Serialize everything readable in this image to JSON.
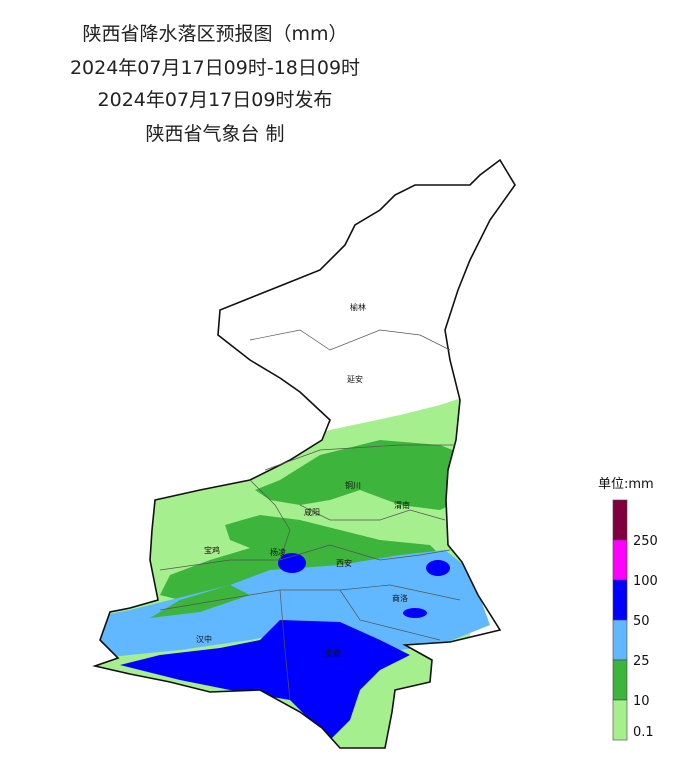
{
  "header": {
    "title": "陕西省降水落区预报图（mm）",
    "period": "2024年07月17日09时-18日09时",
    "issued": "2024年07月17日09时发布",
    "publisher": "陕西省气象台 制"
  },
  "cities": [
    "榆林",
    "延安",
    "铜川",
    "渭南",
    "咸阳",
    "宝鸡",
    "杨凌",
    "西安",
    "商洛",
    "汉中",
    "安康"
  ],
  "legend": {
    "title": "单位:mm",
    "items": [
      {
        "label": "",
        "color": "#80003f"
      },
      {
        "label": "250",
        "color": "#ff00ff"
      },
      {
        "label": "100",
        "color": "#0000fe"
      },
      {
        "label": "50",
        "color": "#62b8ff"
      },
      {
        "label": "25",
        "color": "#3db43b"
      },
      {
        "label": "10",
        "color": "#a6ef8e"
      },
      {
        "label": "0.1",
        "color": null
      }
    ]
  }
}
